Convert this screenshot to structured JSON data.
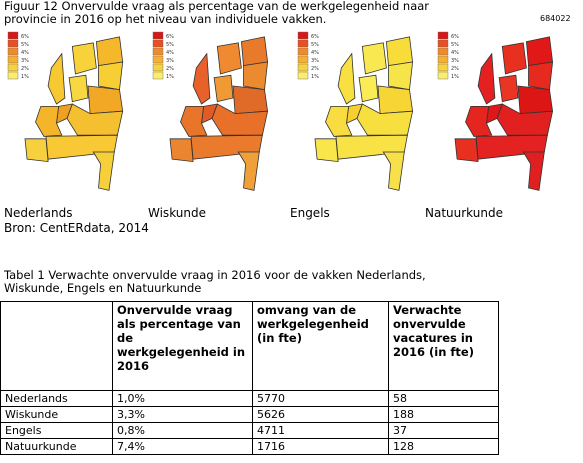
{
  "figure": {
    "caption_lines": [
      "Figuur 12 Onvervulde vraag als percentage van de werkgelegenheid naar",
      "provincie in 2016 op het niveau van individuele vakken."
    ],
    "id": "684022",
    "legend_labels": [
      "6%",
      "5%",
      "4%",
      "3%",
      "2%",
      "1%"
    ],
    "maps": [
      {
        "label": "Nederlands"
      },
      {
        "label": "Wiskunde"
      },
      {
        "label": "Engels"
      },
      {
        "label": "Natuurkunde"
      }
    ],
    "source": "Bron: CentERdata, 2014"
  },
  "table": {
    "caption_lines": [
      "Tabel 1 Verwachte onvervulde vraag in 2016 voor de vakken Nederlands,",
      "Wiskunde, Engels en Natuurkunde"
    ],
    "header": [
      "Onvervulde vraag als percentage van de werkgelegenheid in 2016",
      "omvang van de werkgelegenheid (in fte)",
      "Verwachte onvervulde vacatures in 2016 (in fte)"
    ],
    "rows": [
      [
        "Nederlands",
        "1,0%",
        "5770",
        "58"
      ],
      [
        "Wiskunde",
        "3,3%",
        "5626",
        "188"
      ],
      [
        "Engels",
        "0,8%",
        "4711",
        "37"
      ],
      [
        "Natuurkunde",
        "7,4%",
        "1716",
        "128"
      ]
    ]
  }
}
